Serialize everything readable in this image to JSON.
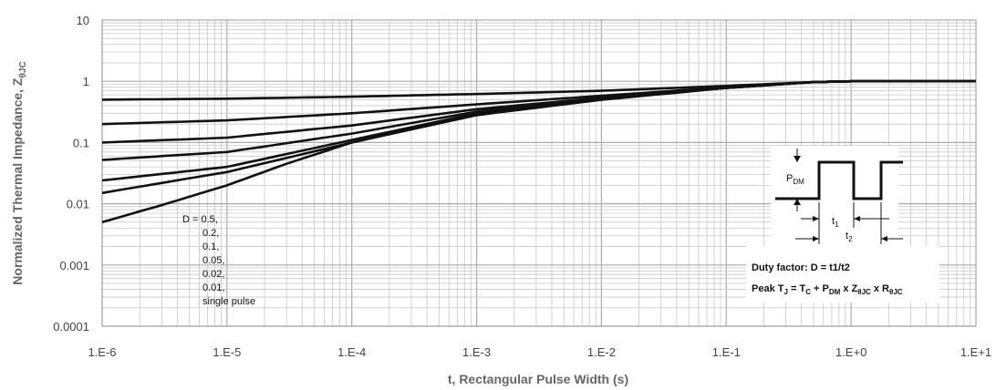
{
  "chart_data": {
    "type": "line",
    "xscale": "log",
    "yscale": "log",
    "xlim": [
      1e-06,
      10
    ],
    "ylim": [
      0.0001,
      10
    ],
    "xlabel": "t, Rectangular Pulse Width (s)",
    "ylabel": "Normalized Thermal Impedance, Z",
    "ylabel_sub": "θJC",
    "x_tick_labels": [
      "1.E-6",
      "1.E-5",
      "1.E-4",
      "1.E-3",
      "1.E-2",
      "1.E-1",
      "1.E+0",
      "1.E+1"
    ],
    "y_tick_labels": [
      "0.0001",
      "0.001",
      "0.01",
      "0.1",
      "1",
      "10"
    ],
    "grid": true,
    "legend_lines": [
      "D = 0.5,",
      "0.2,",
      "0.1,",
      "0.05,",
      "0.02,",
      "0.01,",
      "single pulse"
    ],
    "series": [
      {
        "name": "0.5",
        "x": [
          1e-06,
          1e-05,
          0.0001,
          0.001,
          0.01,
          0.1,
          0.5,
          1,
          10
        ],
        "y": [
          0.5,
          0.52,
          0.56,
          0.62,
          0.7,
          0.84,
          0.97,
          1.0,
          1.0
        ]
      },
      {
        "name": "0.2",
        "x": [
          1e-06,
          1e-05,
          0.0001,
          0.001,
          0.01,
          0.1,
          0.5,
          1,
          10
        ],
        "y": [
          0.2,
          0.23,
          0.3,
          0.42,
          0.58,
          0.8,
          0.97,
          1.0,
          1.0
        ]
      },
      {
        "name": "0.1",
        "x": [
          1e-06,
          1e-05,
          0.0001,
          0.001,
          0.01,
          0.1,
          0.5,
          1,
          10
        ],
        "y": [
          0.1,
          0.12,
          0.19,
          0.35,
          0.54,
          0.79,
          0.97,
          1.0,
          1.0
        ]
      },
      {
        "name": "0.05",
        "x": [
          1e-06,
          1e-05,
          0.0001,
          0.001,
          0.01,
          0.1,
          0.5,
          1,
          10
        ],
        "y": [
          0.052,
          0.07,
          0.14,
          0.32,
          0.52,
          0.78,
          0.97,
          1.0,
          1.0
        ]
      },
      {
        "name": "0.02",
        "x": [
          1e-06,
          1e-05,
          0.0001,
          0.001,
          0.01,
          0.1,
          0.5,
          1,
          10
        ],
        "y": [
          0.024,
          0.04,
          0.11,
          0.3,
          0.51,
          0.78,
          0.97,
          1.0,
          1.0
        ]
      },
      {
        "name": "0.01",
        "x": [
          1e-06,
          1e-05,
          0.0001,
          0.001,
          0.01,
          0.1,
          0.5,
          1,
          10
        ],
        "y": [
          0.015,
          0.033,
          0.1,
          0.29,
          0.5,
          0.78,
          0.97,
          1.0,
          1.0
        ]
      },
      {
        "name": "single pulse",
        "x": [
          1e-06,
          3e-06,
          1e-05,
          3e-05,
          0.0001,
          0.001,
          0.01,
          0.1,
          0.5,
          1,
          10
        ],
        "y": [
          0.005,
          0.0095,
          0.02,
          0.045,
          0.1,
          0.28,
          0.5,
          0.78,
          0.97,
          1.0,
          1.0
        ]
      }
    ]
  },
  "inset": {
    "pdm_label": "P",
    "pdm_sub": "DM",
    "t1_label": "t",
    "t1_sub": "1",
    "t2_label": "t",
    "t2_sub": "2",
    "duty_text": "Duty factor: D = t1/t2",
    "peak_prefix": "Peak T",
    "peak_sub_j": "J",
    "peak_eq1": " = T",
    "peak_sub_c": "C",
    "peak_eq2": " + P",
    "peak_sub_dm": "DM",
    "peak_eq3": " x Z",
    "peak_sub_z": "θJC",
    "peak_eq4": " x R",
    "peak_sub_r": "θJC"
  },
  "colors": {
    "line": "#111111",
    "grid": "#c8c8c8",
    "axis": "#666666"
  }
}
